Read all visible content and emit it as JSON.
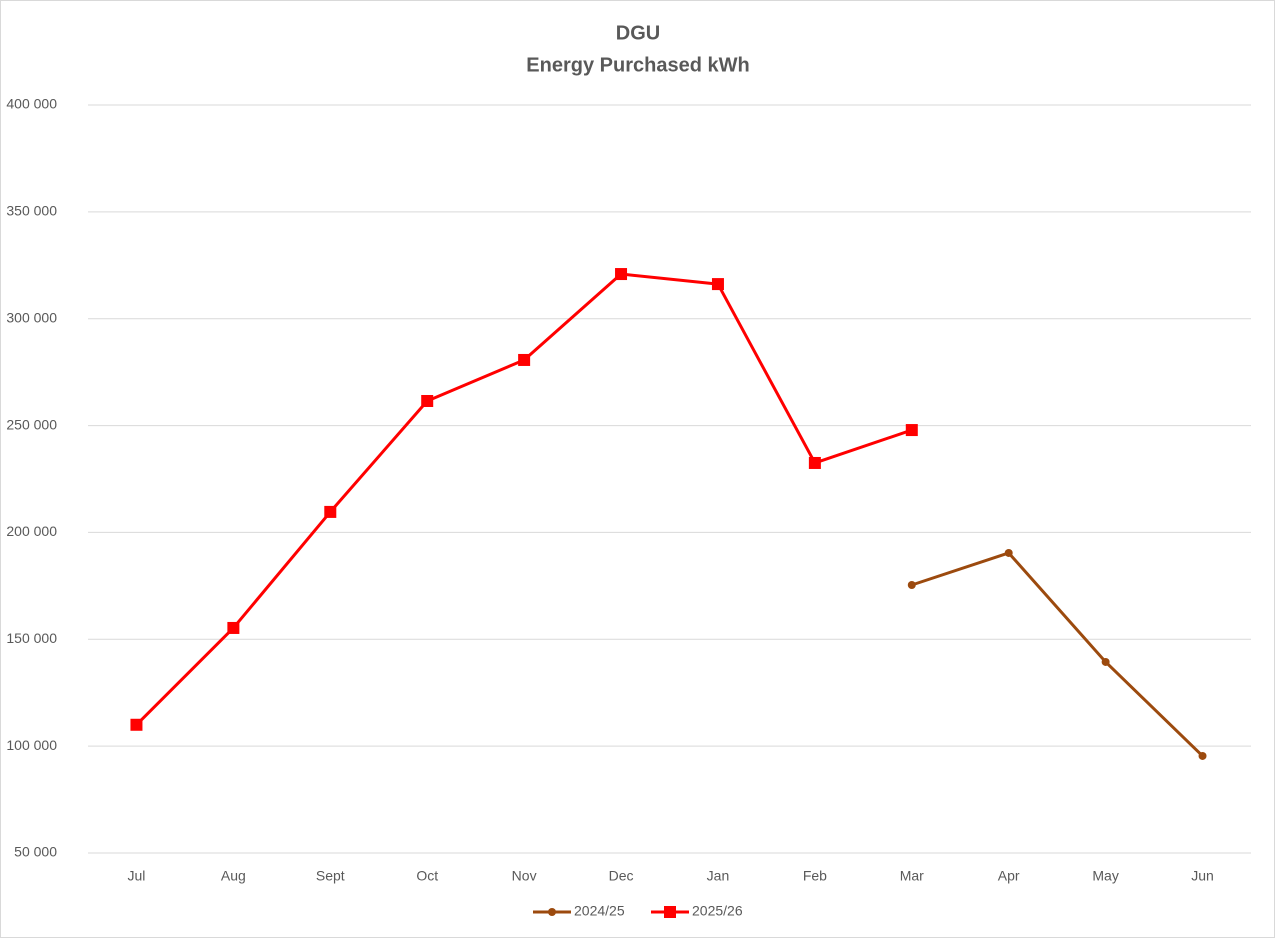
{
  "chart_data": {
    "type": "line",
    "title": [
      "DGU",
      "Energy Purchased kWh"
    ],
    "categories": [
      "Jul",
      "Aug",
      "Sept",
      "Oct",
      "Nov",
      "Dec",
      "Jan",
      "Feb",
      "Mar",
      "Apr",
      "May",
      "Jun"
    ],
    "series": [
      {
        "name": "2024/25",
        "color": "#9c4a0e",
        "marker": "circle",
        "values": [
          null,
          null,
          null,
          null,
          null,
          null,
          null,
          null,
          175400,
          190400,
          139400,
          95400
        ]
      },
      {
        "name": "2025/26",
        "color": "#ff0000",
        "marker": "square",
        "values": [
          110000,
          155300,
          209600,
          261500,
          280700,
          320900,
          316200,
          232500,
          247900,
          null,
          null,
          null
        ]
      }
    ],
    "ylim": [
      50000,
      400000
    ],
    "yticks": [
      {
        "value": 50000,
        "label": "50 000"
      },
      {
        "value": 100000,
        "label": "100 000"
      },
      {
        "value": 150000,
        "label": "150 000"
      },
      {
        "value": 200000,
        "label": "200 000"
      },
      {
        "value": 250000,
        "label": "250 000"
      },
      {
        "value": 300000,
        "label": "300 000"
      },
      {
        "value": 350000,
        "label": "350 000"
      },
      {
        "value": 400000,
        "label": "400 000"
      }
    ],
    "grid": true,
    "legend": "bottom"
  }
}
